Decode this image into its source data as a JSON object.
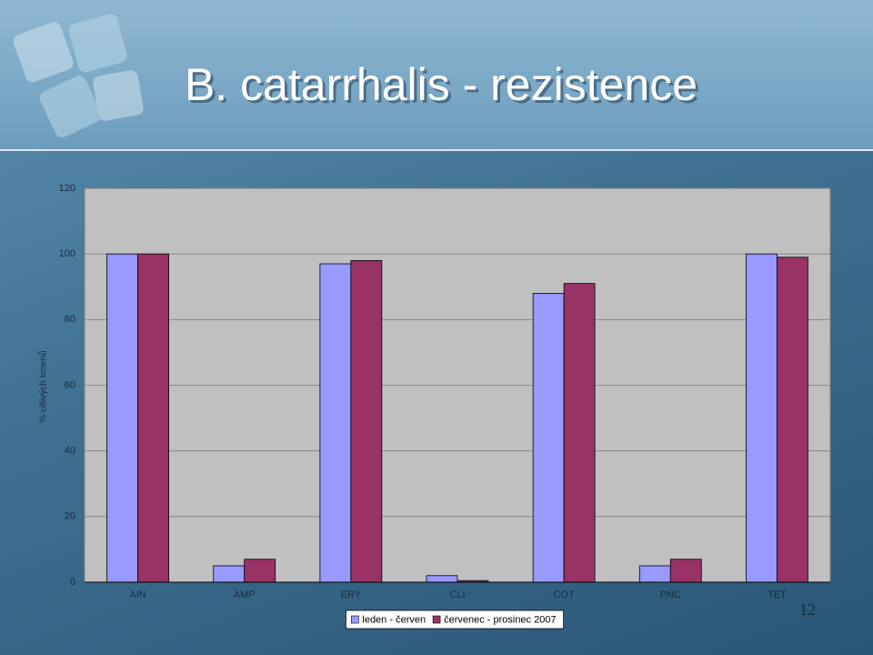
{
  "chart_data": {
    "type": "bar",
    "title": "B. catarrhalis - rezistence",
    "y_label": "% citlivých kmenů",
    "categories": [
      "AIN",
      "AMP",
      "ERY",
      "CLI",
      "COT",
      "PNC",
      "TET"
    ],
    "series": [
      {
        "name": "leden - červen",
        "color": "#9999ff",
        "values": [
          100,
          5,
          97,
          2,
          88,
          5,
          100
        ]
      },
      {
        "name": "červenec - prosinec 2007",
        "color": "#993366",
        "values": [
          100,
          7,
          98,
          0.5,
          91,
          7,
          99
        ]
      }
    ],
    "ylim": [
      0,
      120
    ],
    "yticks": [
      0,
      20,
      40,
      60,
      80,
      100,
      120
    ],
    "grid": true,
    "legend": "bottom"
  },
  "page_number": "12"
}
